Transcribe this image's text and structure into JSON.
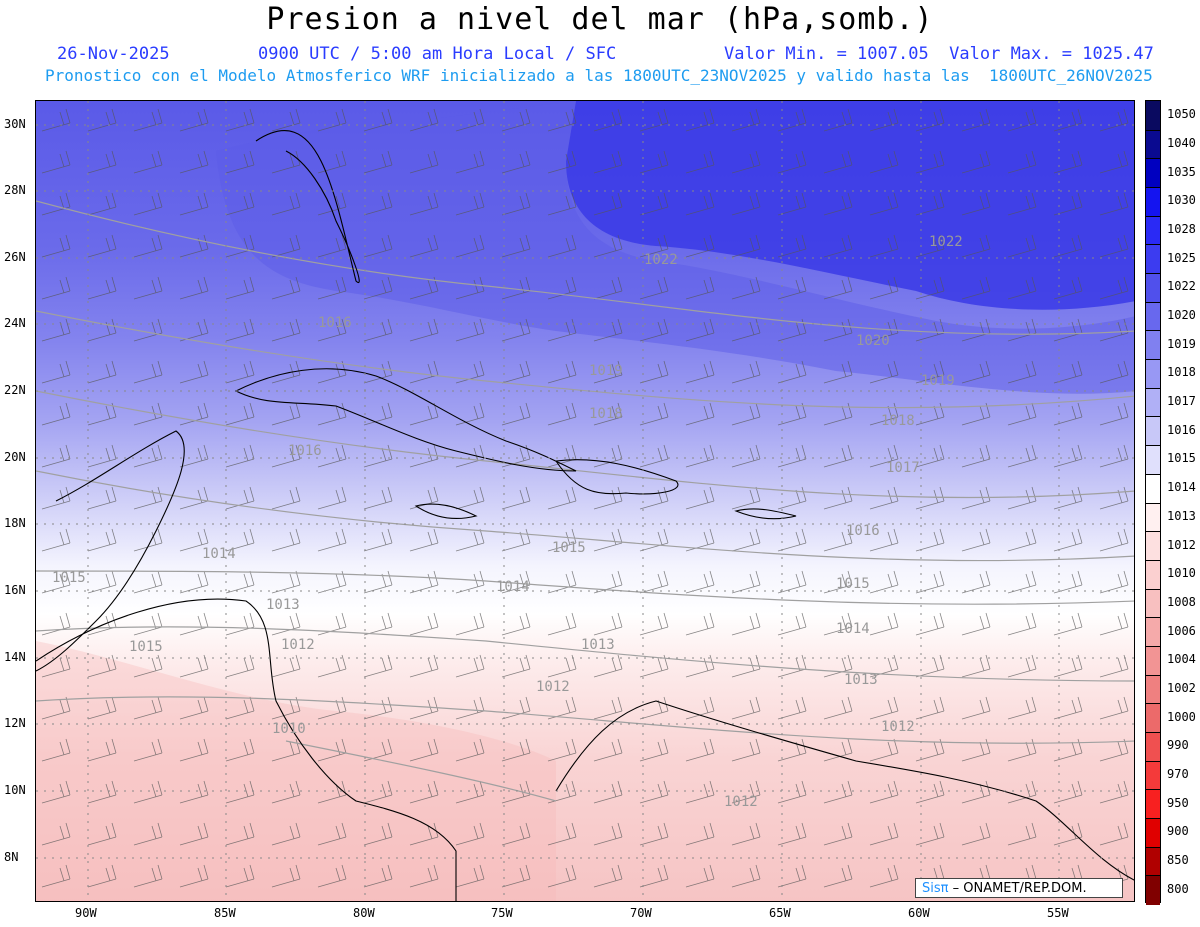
{
  "title": "Presion a nivel del mar (hPa,somb.)",
  "header": {
    "date": "26-Nov-2025",
    "time": "0900 UTC / 5:00 am Hora Local / SFC",
    "minmax": "Valor Min. = 1007.05  Valor Max. = 1025.47",
    "forecast": "Pronostico con el Modelo Atmosferico WRF inicializado a las 1800UTC_23NOV2025 y valido hasta las  1800UTC_26NOV2025"
  },
  "map": {
    "lat_labels": [
      "30N",
      "28N",
      "26N",
      "24N",
      "22N",
      "20N",
      "18N",
      "16N",
      "14N",
      "12N",
      "10N",
      "8N"
    ],
    "lon_labels": [
      "90W",
      "85W",
      "80W",
      "75W",
      "70W",
      "65W",
      "60W",
      "55W"
    ],
    "contour_labels": [
      "1022",
      "1022",
      "1020",
      "1019",
      "1019",
      "1018",
      "1018",
      "1017",
      "1016",
      "1016",
      "1016",
      "1015",
      "1015",
      "1015",
      "1015",
      "1014",
      "1014",
      "1014",
      "1013",
      "1013",
      "1013",
      "1012",
      "1012",
      "1012",
      "1012",
      "1010"
    ]
  },
  "colorbar": {
    "levels": [
      "1050",
      "1040",
      "1035",
      "1030",
      "1028",
      "1025",
      "1022",
      "1020",
      "1019",
      "1018",
      "1017",
      "1016",
      "1015",
      "1014",
      "1013",
      "1012",
      "1010",
      "1008",
      "1006",
      "1004",
      "1002",
      "1000",
      "990",
      "970",
      "950",
      "900",
      "850",
      "800"
    ],
    "colors": [
      "#0a0a60",
      "#0a0a90",
      "#0000c0",
      "#1414f0",
      "#2a2af5",
      "#3c3cf0",
      "#5050ec",
      "#6868ee",
      "#8080f0",
      "#9898f4",
      "#b0b0f6",
      "#c8c8f8",
      "#e0e0fc",
      "#ffffff",
      "#fff0f0",
      "#fde0e0",
      "#fbd0d0",
      "#f8c0c0",
      "#f5aaaa",
      "#f29494",
      "#ef8080",
      "#ec6a6a",
      "#f05050",
      "#f43a3a",
      "#f82020",
      "#e00000",
      "#b00000",
      "#800000"
    ]
  },
  "credit": {
    "logo": "Sisπ",
    "text": " – ONAMET/REP.DOM."
  }
}
